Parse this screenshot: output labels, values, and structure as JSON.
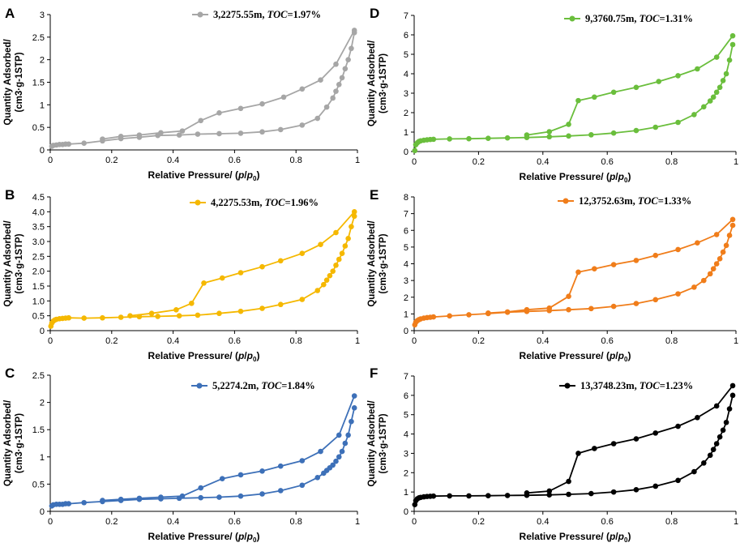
{
  "chart_data": [
    {
      "type": "line",
      "panel": "A",
      "legend": "3,2275.55m, TOC=1.97%",
      "legend_parts": [
        "3,2275.55m, ",
        "TOC",
        "=1.97%"
      ],
      "color": "#a6a6a6",
      "xlabel": "Relative Pressure/ (p/p0)",
      "xlabel_parts": [
        "Relative Pressure/ (",
        "p",
        "/",
        "p",
        "0",
        ")"
      ],
      "ylabel": [
        "Quantity Adsorbed/",
        "(cm3·g-1STP)"
      ],
      "xlim": [
        0,
        1
      ],
      "ylim": [
        0,
        3
      ],
      "xticks": [
        "0",
        "0.2",
        "0.4",
        "0.6",
        "0.8",
        "1"
      ],
      "yticks": [
        "0",
        "0.5",
        "1",
        "1.5",
        "2",
        "2.5",
        "3"
      ],
      "adsorption": {
        "x": [
          0.005,
          0.01,
          0.02,
          0.03,
          0.04,
          0.05,
          0.06,
          0.11,
          0.17,
          0.23,
          0.29,
          0.35,
          0.42,
          0.48,
          0.55,
          0.62,
          0.69,
          0.75,
          0.82,
          0.87,
          0.9,
          0.92,
          0.93,
          0.94,
          0.95,
          0.96,
          0.97,
          0.98,
          0.99
        ],
        "y": [
          0.08,
          0.1,
          0.11,
          0.12,
          0.12,
          0.13,
          0.13,
          0.15,
          0.2,
          0.25,
          0.28,
          0.32,
          0.33,
          0.35,
          0.36,
          0.37,
          0.4,
          0.45,
          0.55,
          0.7,
          0.95,
          1.15,
          1.3,
          1.45,
          1.6,
          1.8,
          2.0,
          2.25,
          2.6
        ]
      },
      "desorption": {
        "x": [
          0.99,
          0.93,
          0.88,
          0.82,
          0.76,
          0.69,
          0.62,
          0.55,
          0.49,
          0.43,
          0.36,
          0.29,
          0.23,
          0.17
        ],
        "y": [
          2.65,
          1.9,
          1.55,
          1.35,
          1.17,
          1.02,
          0.92,
          0.82,
          0.65,
          0.42,
          0.38,
          0.33,
          0.3,
          0.24
        ]
      }
    },
    {
      "type": "line",
      "panel": "B",
      "legend": "4,2275.53m, TOC=1.96%",
      "legend_parts": [
        "4,2275.53m, ",
        "TOC",
        "=1.96%"
      ],
      "color": "#f5b800",
      "xlabel": "Relative Pressure/ (p/p0)",
      "xlabel_parts": [
        "Relative Pressure/ (",
        "p",
        "/",
        "p",
        "0",
        ")"
      ],
      "ylabel": [
        "Quantity Adsorbed/",
        "(cm3·g-1STP)"
      ],
      "xlim": [
        0,
        1
      ],
      "ylim": [
        0,
        4.5
      ],
      "xticks": [
        "0",
        "0.2",
        "0.4",
        "0.6",
        "0.8",
        "1"
      ],
      "yticks": [
        "0",
        "0.5",
        "1.0",
        "1.5",
        "2.0",
        "2.5",
        "3.0",
        "3.5",
        "4.0",
        "4.5"
      ],
      "adsorption": {
        "x": [
          0.002,
          0.005,
          0.01,
          0.015,
          0.02,
          0.03,
          0.04,
          0.05,
          0.06,
          0.11,
          0.17,
          0.23,
          0.29,
          0.35,
          0.42,
          0.48,
          0.55,
          0.62,
          0.69,
          0.75,
          0.82,
          0.87,
          0.89,
          0.9,
          0.91,
          0.92,
          0.93,
          0.94,
          0.95,
          0.96,
          0.97,
          0.98,
          0.99
        ],
        "y": [
          0.15,
          0.25,
          0.32,
          0.36,
          0.38,
          0.4,
          0.41,
          0.42,
          0.43,
          0.42,
          0.43,
          0.45,
          0.47,
          0.48,
          0.5,
          0.52,
          0.58,
          0.65,
          0.75,
          0.88,
          1.05,
          1.35,
          1.55,
          1.7,
          1.85,
          2.0,
          2.2,
          2.4,
          2.6,
          2.85,
          3.1,
          3.5,
          3.85
        ]
      },
      "desorption": {
        "x": [
          0.99,
          0.93,
          0.88,
          0.82,
          0.75,
          0.69,
          0.62,
          0.56,
          0.5,
          0.46,
          0.41,
          0.33,
          0.26
        ],
        "y": [
          4.0,
          3.3,
          2.9,
          2.6,
          2.35,
          2.15,
          1.95,
          1.77,
          1.6,
          0.92,
          0.7,
          0.58,
          0.5
        ]
      }
    },
    {
      "type": "line",
      "panel": "C",
      "legend": "5,2274.2m, TOC=1.84%",
      "legend_parts": [
        "5,2274.2m, ",
        "TOC",
        "=1.84%"
      ],
      "color": "#3d70b8",
      "xlabel": "Relative Pressure/ (p/p0)",
      "xlabel_parts": [
        "Relative Pressure/ (",
        "p",
        "/",
        "p",
        "0",
        ")"
      ],
      "ylabel": [
        "Quantity Adsorbed/",
        "(cm3·g-1STP)"
      ],
      "xlim": [
        0,
        1
      ],
      "ylim": [
        0,
        2.5
      ],
      "xticks": [
        "0",
        "0.2",
        "0.4",
        "0.6",
        "0.8",
        "1"
      ],
      "yticks": [
        "0",
        "0.5",
        "1",
        "1.5",
        "2",
        "2.5"
      ],
      "adsorption": {
        "x": [
          0.005,
          0.01,
          0.02,
          0.03,
          0.04,
          0.05,
          0.06,
          0.11,
          0.17,
          0.23,
          0.29,
          0.36,
          0.42,
          0.49,
          0.55,
          0.62,
          0.69,
          0.75,
          0.82,
          0.87,
          0.89,
          0.9,
          0.91,
          0.92,
          0.93,
          0.94,
          0.95,
          0.96,
          0.97,
          0.98,
          0.99
        ],
        "y": [
          0.1,
          0.12,
          0.13,
          0.13,
          0.13,
          0.14,
          0.14,
          0.16,
          0.18,
          0.2,
          0.22,
          0.23,
          0.24,
          0.25,
          0.26,
          0.28,
          0.32,
          0.38,
          0.48,
          0.62,
          0.7,
          0.75,
          0.8,
          0.85,
          0.92,
          1.0,
          1.1,
          1.25,
          1.4,
          1.65,
          1.9
        ]
      },
      "desorption": {
        "x": [
          0.99,
          0.94,
          0.88,
          0.82,
          0.75,
          0.69,
          0.62,
          0.56,
          0.49,
          0.43,
          0.36,
          0.29,
          0.23,
          0.17
        ],
        "y": [
          2.12,
          1.4,
          1.1,
          0.93,
          0.83,
          0.74,
          0.67,
          0.6,
          0.43,
          0.28,
          0.26,
          0.24,
          0.22,
          0.2
        ]
      }
    },
    {
      "type": "line",
      "panel": "D",
      "legend": "9,3760.75m, TOC=1.31%",
      "legend_parts": [
        "9,3760.75m, ",
        "TOC",
        "=1.31%"
      ],
      "color": "#6abe3c",
      "xlabel": "Relative Pressure/ (p/p0)",
      "xlabel_parts": [
        "Relative Pressure/ (",
        "p",
        "/",
        "p",
        "0",
        ")"
      ],
      "ylabel": [
        "Quantity Adsorbed/",
        "(cm3·g-1STP)"
      ],
      "xlim": [
        0,
        1
      ],
      "ylim": [
        0,
        7
      ],
      "xticks": [
        "0",
        "0.2",
        "0.4",
        "0.6",
        "0.8",
        "1"
      ],
      "yticks": [
        "0",
        "1",
        "2",
        "3",
        "4",
        "5",
        "6",
        "7"
      ],
      "adsorption": {
        "x": [
          0.002,
          0.005,
          0.01,
          0.015,
          0.02,
          0.03,
          0.04,
          0.05,
          0.06,
          0.11,
          0.17,
          0.23,
          0.29,
          0.35,
          0.42,
          0.48,
          0.55,
          0.62,
          0.69,
          0.75,
          0.82,
          0.87,
          0.9,
          0.92,
          0.93,
          0.94,
          0.95,
          0.96,
          0.97,
          0.98,
          0.99
        ],
        "y": [
          0.05,
          0.35,
          0.45,
          0.52,
          0.55,
          0.58,
          0.6,
          0.62,
          0.63,
          0.65,
          0.66,
          0.68,
          0.7,
          0.72,
          0.76,
          0.8,
          0.86,
          0.95,
          1.08,
          1.25,
          1.5,
          1.9,
          2.3,
          2.6,
          2.8,
          3.05,
          3.3,
          3.65,
          4.0,
          4.7,
          5.5
        ]
      },
      "desorption": {
        "x": [
          0.99,
          0.94,
          0.88,
          0.82,
          0.76,
          0.69,
          0.62,
          0.56,
          0.51,
          0.48,
          0.42,
          0.35
        ],
        "y": [
          5.95,
          4.85,
          4.25,
          3.9,
          3.6,
          3.3,
          3.05,
          2.8,
          2.62,
          1.4,
          1.02,
          0.85
        ]
      }
    },
    {
      "type": "line",
      "panel": "E",
      "legend": "12,3752.63m, TOC=1.33%",
      "legend_parts": [
        "12,3752.63m, ",
        "TOC",
        "=1.33%"
      ],
      "color": "#f07d1a",
      "xlabel": "Relative Pressure/ (p/p0)",
      "xlabel_parts": [
        "Relative Pressure/ (",
        "p",
        "/",
        "p",
        "0",
        ")"
      ],
      "ylabel": [
        "Quantity Adsorbed/",
        "(cm3·g-1STP)"
      ],
      "xlim": [
        0,
        1
      ],
      "ylim": [
        0,
        8
      ],
      "xticks": [
        "0",
        "0.2",
        "0.4",
        "0.6",
        "0.8",
        "1"
      ],
      "yticks": [
        "0",
        "1",
        "2",
        "3",
        "4",
        "5",
        "6",
        "7",
        "8"
      ],
      "adsorption": {
        "x": [
          0.002,
          0.005,
          0.01,
          0.015,
          0.02,
          0.03,
          0.04,
          0.05,
          0.06,
          0.11,
          0.17,
          0.23,
          0.29,
          0.35,
          0.42,
          0.48,
          0.55,
          0.62,
          0.69,
          0.75,
          0.82,
          0.87,
          0.9,
          0.92,
          0.93,
          0.94,
          0.95,
          0.96,
          0.97,
          0.98,
          0.99
        ],
        "y": [
          0.35,
          0.5,
          0.6,
          0.66,
          0.7,
          0.75,
          0.78,
          0.8,
          0.82,
          0.88,
          0.95,
          1.02,
          1.1,
          1.15,
          1.2,
          1.25,
          1.32,
          1.45,
          1.62,
          1.85,
          2.2,
          2.6,
          3.0,
          3.4,
          3.7,
          4.0,
          4.3,
          4.7,
          5.1,
          5.7,
          6.3
        ]
      },
      "desorption": {
        "x": [
          0.99,
          0.94,
          0.88,
          0.82,
          0.75,
          0.69,
          0.62,
          0.56,
          0.51,
          0.48,
          0.42,
          0.35,
          0.29,
          0.23
        ],
        "y": [
          6.65,
          5.75,
          5.25,
          4.85,
          4.5,
          4.2,
          3.95,
          3.7,
          3.5,
          2.05,
          1.35,
          1.25,
          1.12,
          1.05
        ]
      }
    },
    {
      "type": "line",
      "panel": "F",
      "legend": "13,3748.23m, TOC=1.23%",
      "legend_parts": [
        "13,3748.23m, ",
        "TOC",
        "=1.23%"
      ],
      "color": "#000000",
      "xlabel": "Relative Pressure/ (p/p0)",
      "xlabel_parts": [
        "Relative Pressure/ (",
        "p",
        "/",
        "p",
        "0",
        ")"
      ],
      "ylabel": [
        "Quantity Adsorbed/",
        "(cm3·g-1STP)"
      ],
      "xlim": [
        0,
        1
      ],
      "ylim": [
        0,
        7
      ],
      "xticks": [
        "0",
        "0.2",
        "0.4",
        "0.6",
        "0.8",
        "1"
      ],
      "yticks": [
        "0",
        "1",
        "2",
        "3",
        "4",
        "5",
        "6",
        "7"
      ],
      "adsorption": {
        "x": [
          0.002,
          0.005,
          0.01,
          0.015,
          0.02,
          0.03,
          0.04,
          0.05,
          0.06,
          0.11,
          0.17,
          0.23,
          0.29,
          0.35,
          0.42,
          0.48,
          0.55,
          0.62,
          0.69,
          0.75,
          0.82,
          0.87,
          0.9,
          0.92,
          0.93,
          0.94,
          0.95,
          0.96,
          0.97,
          0.98,
          0.99
        ],
        "y": [
          0.35,
          0.55,
          0.65,
          0.7,
          0.72,
          0.75,
          0.77,
          0.78,
          0.79,
          0.8,
          0.8,
          0.81,
          0.82,
          0.83,
          0.85,
          0.88,
          0.92,
          1.0,
          1.12,
          1.3,
          1.6,
          2.05,
          2.5,
          2.9,
          3.2,
          3.5,
          3.85,
          4.2,
          4.6,
          5.3,
          6.0
        ]
      },
      "desorption": {
        "x": [
          0.99,
          0.94,
          0.88,
          0.82,
          0.75,
          0.69,
          0.62,
          0.56,
          0.51,
          0.48,
          0.42,
          0.35
        ],
        "y": [
          6.5,
          5.45,
          4.85,
          4.4,
          4.05,
          3.75,
          3.5,
          3.25,
          3.0,
          1.55,
          1.05,
          0.95
        ]
      }
    }
  ]
}
